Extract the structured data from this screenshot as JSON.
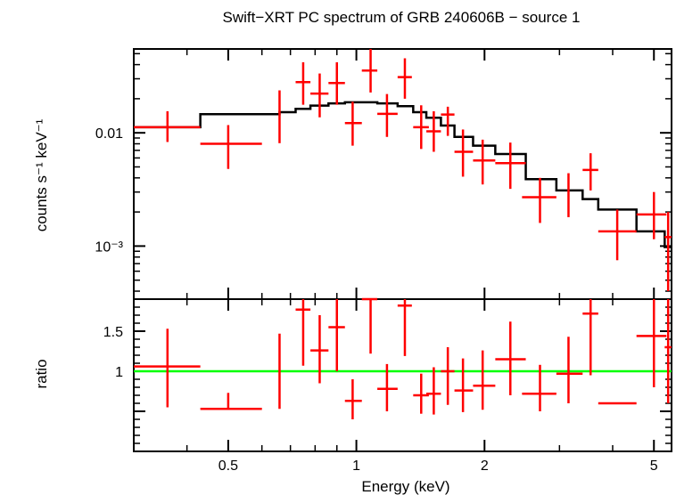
{
  "chart_data": [
    {
      "panel": "spectrum",
      "type": "scatter",
      "title": "Swift−XRT PC spectrum of GRB 240606B − source 1",
      "xlabel": "Energy (keV)",
      "ylabel": "counts s⁻¹ keV⁻¹",
      "xscale": "log",
      "yscale": "log",
      "xlim": [
        0.3,
        5.5
      ],
      "ylim": [
        0.00034,
        0.055
      ],
      "x_ticks": [
        {
          "value": 0.5,
          "label": "0.5"
        },
        {
          "value": 1,
          "label": "1"
        },
        {
          "value": 2,
          "label": "2"
        },
        {
          "value": 5,
          "label": "5"
        }
      ],
      "y_ticks": [
        {
          "value": 0.01,
          "label": "0.01"
        },
        {
          "value": 0.001,
          "label": "10⁻³"
        }
      ],
      "colors": {
        "data": "#ff0000",
        "model": "#000000"
      },
      "data_points": [
        {
          "x": 0.36,
          "xlo": 0.3,
          "xhi": 0.43,
          "y": 0.0112,
          "ylo": 0.0083,
          "yhi": 0.0155
        },
        {
          "x": 0.5,
          "xlo": 0.43,
          "xhi": 0.6,
          "y": 0.008,
          "ylo": 0.0048,
          "yhi": 0.0117
        },
        {
          "x": 0.66,
          "xlo": 0.66,
          "xhi": 0.66,
          "y": 0.0135,
          "ylo": 0.0081,
          "yhi": 0.0237
        },
        {
          "x": 0.75,
          "xlo": 0.72,
          "xhi": 0.78,
          "y": 0.028,
          "ylo": 0.0177,
          "yhi": 0.042
        },
        {
          "x": 0.82,
          "xlo": 0.78,
          "xhi": 0.86,
          "y": 0.0222,
          "ylo": 0.0137,
          "yhi": 0.0334
        },
        {
          "x": 0.9,
          "xlo": 0.86,
          "xhi": 0.94,
          "y": 0.0275,
          "ylo": 0.0177,
          "yhi": 0.042
        },
        {
          "x": 0.98,
          "xlo": 0.94,
          "xhi": 1.03,
          "y": 0.0122,
          "ylo": 0.0077,
          "yhi": 0.0188
        },
        {
          "x": 1.08,
          "xlo": 1.03,
          "xhi": 1.12,
          "y": 0.0355,
          "ylo": 0.0227,
          "yhi": 0.055
        },
        {
          "x": 1.18,
          "xlo": 1.12,
          "xhi": 1.25,
          "y": 0.0147,
          "ylo": 0.0092,
          "yhi": 0.022
        },
        {
          "x": 1.3,
          "xlo": 1.25,
          "xhi": 1.35,
          "y": 0.031,
          "ylo": 0.02,
          "yhi": 0.0455
        },
        {
          "x": 1.42,
          "xlo": 1.36,
          "xhi": 1.48,
          "y": 0.0112,
          "ylo": 0.0072,
          "yhi": 0.0175
        },
        {
          "x": 1.52,
          "xlo": 1.46,
          "xhi": 1.58,
          "y": 0.0103,
          "ylo": 0.0068,
          "yhi": 0.0155
        },
        {
          "x": 1.64,
          "xlo": 1.58,
          "xhi": 1.7,
          "y": 0.0145,
          "ylo": 0.0094,
          "yhi": 0.017
        },
        {
          "x": 1.78,
          "xlo": 1.7,
          "xhi": 1.88,
          "y": 0.0068,
          "ylo": 0.0041,
          "yhi": 0.0107
        },
        {
          "x": 1.98,
          "xlo": 1.88,
          "xhi": 2.12,
          "y": 0.0057,
          "ylo": 0.0035,
          "yhi": 0.0087
        },
        {
          "x": 2.3,
          "xlo": 2.12,
          "xhi": 2.5,
          "y": 0.0054,
          "ylo": 0.0032,
          "yhi": 0.0082
        },
        {
          "x": 2.7,
          "xlo": 2.45,
          "xhi": 2.95,
          "y": 0.0027,
          "ylo": 0.0016,
          "yhi": 0.004
        },
        {
          "x": 3.15,
          "xlo": 3.15,
          "xhi": 3.15,
          "y": 0.0029,
          "ylo": 0.0018,
          "yhi": 0.0044
        },
        {
          "x": 3.55,
          "xlo": 3.4,
          "xhi": 3.7,
          "y": 0.0047,
          "ylo": 0.0031,
          "yhi": 0.0066
        },
        {
          "x": 4.1,
          "xlo": 3.7,
          "xhi": 4.55,
          "y": 0.00135,
          "ylo": 0.00075,
          "yhi": 0.0021
        },
        {
          "x": 5.0,
          "xlo": 4.55,
          "xhi": 5.35,
          "y": 0.0019,
          "ylo": 0.00115,
          "yhi": 0.003
        },
        {
          "x": 5.4,
          "xlo": 5.3,
          "xhi": 5.5,
          "y": 0.0012,
          "ylo": 0.0004,
          "yhi": 0.002
        }
      ],
      "model_steps": [
        {
          "x": 0.3,
          "y": 0.0112
        },
        {
          "x": 0.43,
          "y": 0.0146
        },
        {
          "x": 0.66,
          "y": 0.0152
        },
        {
          "x": 0.72,
          "y": 0.0163
        },
        {
          "x": 0.78,
          "y": 0.0174
        },
        {
          "x": 0.86,
          "y": 0.0182
        },
        {
          "x": 0.94,
          "y": 0.0186
        },
        {
          "x": 1.03,
          "y": 0.0186
        },
        {
          "x": 1.12,
          "y": 0.0182
        },
        {
          "x": 1.25,
          "y": 0.0172
        },
        {
          "x": 1.36,
          "y": 0.0152
        },
        {
          "x": 1.46,
          "y": 0.0136
        },
        {
          "x": 1.58,
          "y": 0.0116
        },
        {
          "x": 1.7,
          "y": 0.0092
        },
        {
          "x": 1.88,
          "y": 0.0077
        },
        {
          "x": 2.12,
          "y": 0.0065
        },
        {
          "x": 2.5,
          "y": 0.0039
        },
        {
          "x": 2.95,
          "y": 0.0031
        },
        {
          "x": 3.4,
          "y": 0.0026
        },
        {
          "x": 3.7,
          "y": 0.0021
        },
        {
          "x": 4.55,
          "y": 0.00135
        },
        {
          "x": 5.3,
          "y": 0.00098
        },
        {
          "x": 5.5,
          "y": 0.00098
        }
      ]
    },
    {
      "panel": "ratio",
      "type": "scatter",
      "xlabel": "Energy (keV)",
      "ylabel": "ratio",
      "xscale": "log",
      "yscale": "linear",
      "xlim": [
        0.3,
        5.5
      ],
      "ylim": [
        0.0,
        1.9
      ],
      "y_ticks": [
        {
          "value": 1.5,
          "label": "1.5"
        },
        {
          "value": 1,
          "label": "1"
        }
      ],
      "reference_line": {
        "y": 1.0,
        "color": "#00ff00"
      },
      "colors": {
        "data": "#ff0000"
      },
      "data_points": [
        {
          "x": 0.36,
          "xlo": 0.3,
          "xhi": 0.43,
          "y": 1.06,
          "ylo": 0.55,
          "yhi": 1.53
        },
        {
          "x": 0.5,
          "xlo": 0.43,
          "xhi": 0.6,
          "y": 0.53,
          "ylo": 0.53,
          "yhi": 0.73
        },
        {
          "x": 0.66,
          "xlo": 0.66,
          "xhi": 0.66,
          "y": 1.0,
          "ylo": 0.53,
          "yhi": 1.47
        },
        {
          "x": 0.75,
          "xlo": 0.72,
          "xhi": 0.78,
          "y": 1.77,
          "ylo": 1.07,
          "yhi": 1.99
        },
        {
          "x": 0.82,
          "xlo": 0.78,
          "xhi": 0.86,
          "y": 1.26,
          "ylo": 0.85,
          "yhi": 1.7
        },
        {
          "x": 0.9,
          "xlo": 0.86,
          "xhi": 0.94,
          "y": 1.55,
          "ylo": 1.0,
          "yhi": 1.99
        },
        {
          "x": 0.98,
          "xlo": 0.94,
          "xhi": 1.03,
          "y": 0.63,
          "ylo": 0.4,
          "yhi": 0.9
        },
        {
          "x": 1.08,
          "xlo": 1.03,
          "xhi": 1.12,
          "y": 1.9,
          "ylo": 1.22,
          "yhi": 1.99
        },
        {
          "x": 1.18,
          "xlo": 1.12,
          "xhi": 1.25,
          "y": 0.78,
          "ylo": 0.5,
          "yhi": 1.09
        },
        {
          "x": 1.3,
          "xlo": 1.25,
          "xhi": 1.35,
          "y": 1.82,
          "ylo": 1.19,
          "yhi": 1.99
        },
        {
          "x": 1.42,
          "xlo": 1.36,
          "xhi": 1.48,
          "y": 0.7,
          "ylo": 0.47,
          "yhi": 0.97
        },
        {
          "x": 1.52,
          "xlo": 1.46,
          "xhi": 1.58,
          "y": 0.72,
          "ylo": 0.46,
          "yhi": 1.05
        },
        {
          "x": 1.64,
          "xlo": 1.58,
          "xhi": 1.7,
          "y": 1.0,
          "ylo": 0.58,
          "yhi": 1.3
        },
        {
          "x": 1.78,
          "xlo": 1.7,
          "xhi": 1.88,
          "y": 0.76,
          "ylo": 0.49,
          "yhi": 1.16
        },
        {
          "x": 1.98,
          "xlo": 1.88,
          "xhi": 2.12,
          "y": 0.82,
          "ylo": 0.52,
          "yhi": 1.26
        },
        {
          "x": 2.3,
          "xlo": 2.12,
          "xhi": 2.5,
          "y": 1.15,
          "ylo": 0.7,
          "yhi": 1.62
        },
        {
          "x": 2.7,
          "xlo": 2.45,
          "xhi": 2.95,
          "y": 0.72,
          "ylo": 0.5,
          "yhi": 1.08
        },
        {
          "x": 3.15,
          "xlo": 2.95,
          "xhi": 3.4,
          "y": 0.97,
          "ylo": 0.6,
          "yhi": 1.43
        },
        {
          "x": 3.55,
          "xlo": 3.4,
          "xhi": 3.7,
          "y": 1.72,
          "ylo": 0.95,
          "yhi": 1.99
        },
        {
          "x": 4.1,
          "xlo": 3.7,
          "xhi": 4.55,
          "y": 0.6,
          "ylo": 0.6,
          "yhi": 0.6
        },
        {
          "x": 5.0,
          "xlo": 4.55,
          "xhi": 5.35,
          "y": 1.44,
          "ylo": 0.8,
          "yhi": 1.99
        },
        {
          "x": 5.4,
          "xlo": 5.3,
          "xhi": 5.5,
          "y": 1.3,
          "ylo": 0.6,
          "yhi": 1.99
        }
      ]
    }
  ]
}
